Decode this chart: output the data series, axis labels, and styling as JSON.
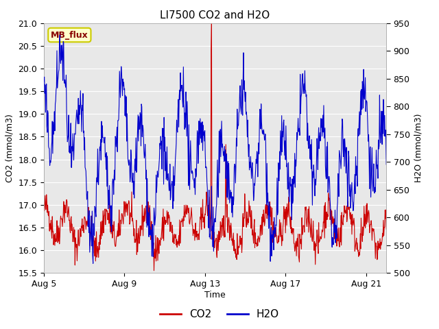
{
  "title": "LI7500 CO2 and H2O",
  "xlabel": "Time",
  "ylabel_left": "CO2 (mmol/m3)",
  "ylabel_right": "H2O (mmol/m3)",
  "ylim_left": [
    15.5,
    21.0
  ],
  "ylim_right": [
    500,
    950
  ],
  "yticks_left": [
    15.5,
    16.0,
    16.5,
    17.0,
    17.5,
    18.0,
    18.5,
    19.0,
    19.5,
    20.0,
    20.5,
    21.0
  ],
  "yticks_right": [
    500,
    550,
    600,
    650,
    700,
    750,
    800,
    850,
    900,
    950
  ],
  "xtick_labels": [
    "Aug 5",
    "Aug 9",
    "Aug 13",
    "Aug 17",
    "Aug 21"
  ],
  "xtick_positions": [
    0,
    4,
    8,
    12,
    16
  ],
  "xlim": [
    0,
    17
  ],
  "background_color": "#ffffff",
  "plot_bg_color": "#e8e8e8",
  "grid_color": "#ffffff",
  "legend_label_co2": "CO2",
  "legend_label_h2o": "H2O",
  "co2_color": "#cc0000",
  "h2o_color": "#0000cc",
  "annotation_text": "MB_flux",
  "annotation_bg": "#ffffcc",
  "annotation_border": "#cccc00",
  "annotation_text_color": "#880000"
}
